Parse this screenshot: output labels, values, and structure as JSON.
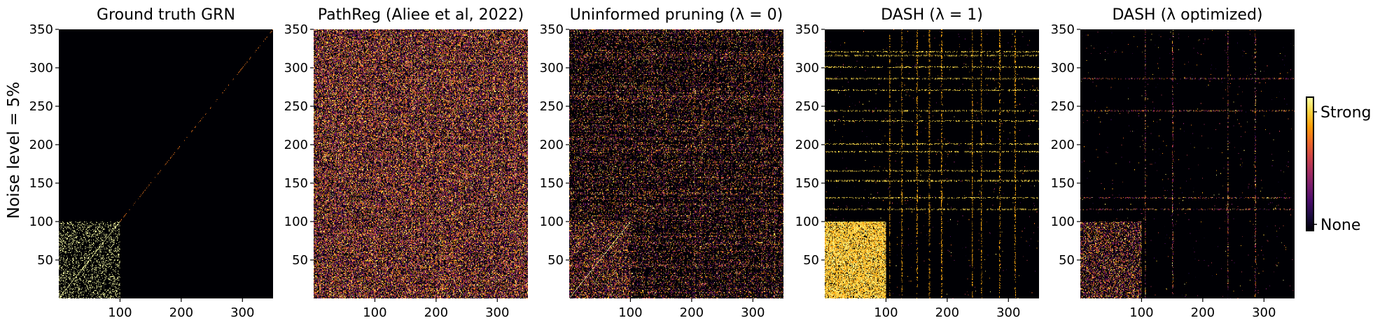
{
  "figure": {
    "ylabel": "Noise level = 5%",
    "colorbar": {
      "label_high": "Strong",
      "label_low": "None",
      "colors": [
        "#000004",
        "#1b0c41",
        "#4a0c6b",
        "#781c6d",
        "#a52c60",
        "#cf4446",
        "#ed6925",
        "#fb9b06",
        "#f7d13d",
        "#fcffa4"
      ]
    }
  },
  "chart_data": [
    {
      "type": "heatmap",
      "title": "Ground truth GRN",
      "xlim": [
        0,
        350
      ],
      "ylim": [
        0,
        350
      ],
      "xticks": [
        100,
        200,
        300
      ],
      "yticks": [
        50,
        100,
        150,
        200,
        250,
        300,
        350
      ],
      "grid_size": 350,
      "pattern": {
        "block_end": 100,
        "block_density": 0.18,
        "bg_density": 0,
        "diagonal": true,
        "row_stripes": [],
        "col_stripes": [],
        "strength": "binary"
      }
    },
    {
      "type": "heatmap",
      "title": "PathReg (Aliee et al, 2022)",
      "xlim": [
        0,
        350
      ],
      "ylim": [
        0,
        350
      ],
      "xticks": [
        100,
        200,
        300
      ],
      "yticks": [
        50,
        100,
        150,
        200,
        250,
        300,
        350
      ],
      "grid_size": 350,
      "pattern": {
        "block_end": 350,
        "block_density": 0.35,
        "bg_density": 0.35,
        "diagonal": false,
        "row_stripes": "dense",
        "col_stripes": "dense",
        "strength": "mixed"
      }
    },
    {
      "type": "heatmap",
      "title": "Uninformed pruning (λ = 0)",
      "xlim": [
        0,
        350
      ],
      "ylim": [
        0,
        350
      ],
      "xticks": [
        100,
        200,
        300
      ],
      "yticks": [
        50,
        100,
        150,
        200,
        250,
        300,
        350
      ],
      "grid_size": 350,
      "pattern": {
        "block_end": 100,
        "block_density": 0.3,
        "bg_density": 0.18,
        "diagonal": true,
        "row_stripes": "dense",
        "col_stripes": "sparse",
        "strength": "mixed"
      }
    },
    {
      "type": "heatmap",
      "title": "DASH (λ = 1)",
      "xlim": [
        0,
        350
      ],
      "ylim": [
        0,
        350
      ],
      "xticks": [
        100,
        200,
        300
      ],
      "yticks": [
        50,
        100,
        150,
        200,
        250,
        300,
        350
      ],
      "grid_size": 350,
      "pattern": {
        "block_end": 100,
        "block_density": 0.85,
        "bg_density": 0.004,
        "diagonal": false,
        "row_stripes": [
          115,
          130,
          152,
          165,
          190,
          200,
          230,
          243,
          270,
          285,
          300,
          315,
          320
        ],
        "col_stripes": [
          105,
          125,
          150,
          170,
          190,
          240,
          255,
          285,
          310
        ],
        "strength": "strong"
      }
    },
    {
      "type": "heatmap",
      "title": "DASH (λ optimized)",
      "xlim": [
        0,
        350
      ],
      "ylim": [
        0,
        350
      ],
      "xticks": [
        100,
        200,
        300
      ],
      "yticks": [
        50,
        100,
        150,
        200,
        250,
        300,
        350
      ],
      "grid_size": 350,
      "pattern": {
        "block_end": 100,
        "block_density": 0.45,
        "bg_density": 0.004,
        "diagonal": false,
        "row_stripes": [
          115,
          130,
          243,
          285
        ],
        "col_stripes": [
          105,
          150,
          240,
          285
        ],
        "strength": "mixed"
      }
    }
  ]
}
